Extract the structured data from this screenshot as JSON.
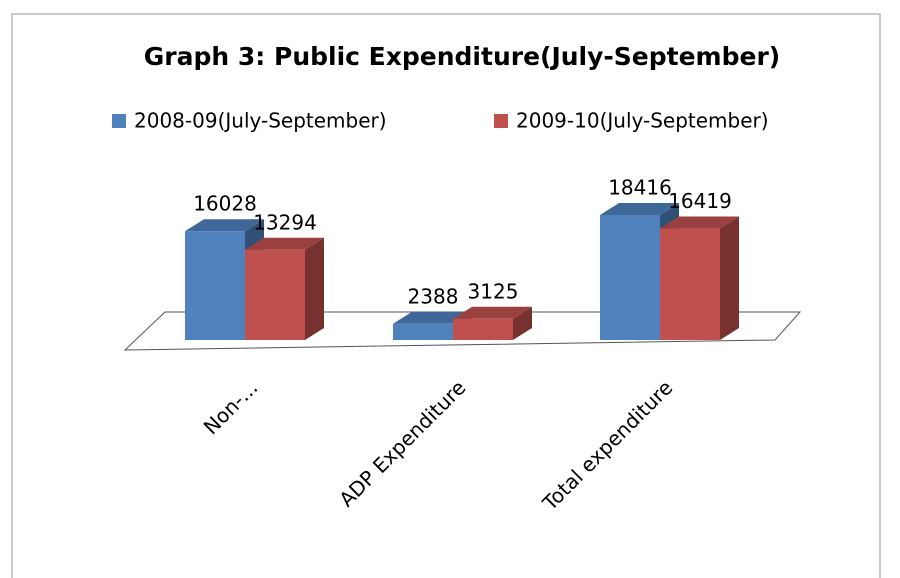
{
  "chart_data": {
    "type": "bar3d",
    "title": "Graph 3: Public Expenditure(July-September)",
    "categories": [
      "Non-...",
      "ADP Expenditure",
      "Total expenditure"
    ],
    "series": [
      {
        "name": "2008-09(July-September)",
        "color": "#4f81bd",
        "values": [
          16028,
          2388,
          18416
        ]
      },
      {
        "name": "2009-10(July-September)",
        "color": "#c0504d",
        "values": [
          13294,
          3125,
          16419
        ]
      }
    ],
    "legend": "top"
  }
}
